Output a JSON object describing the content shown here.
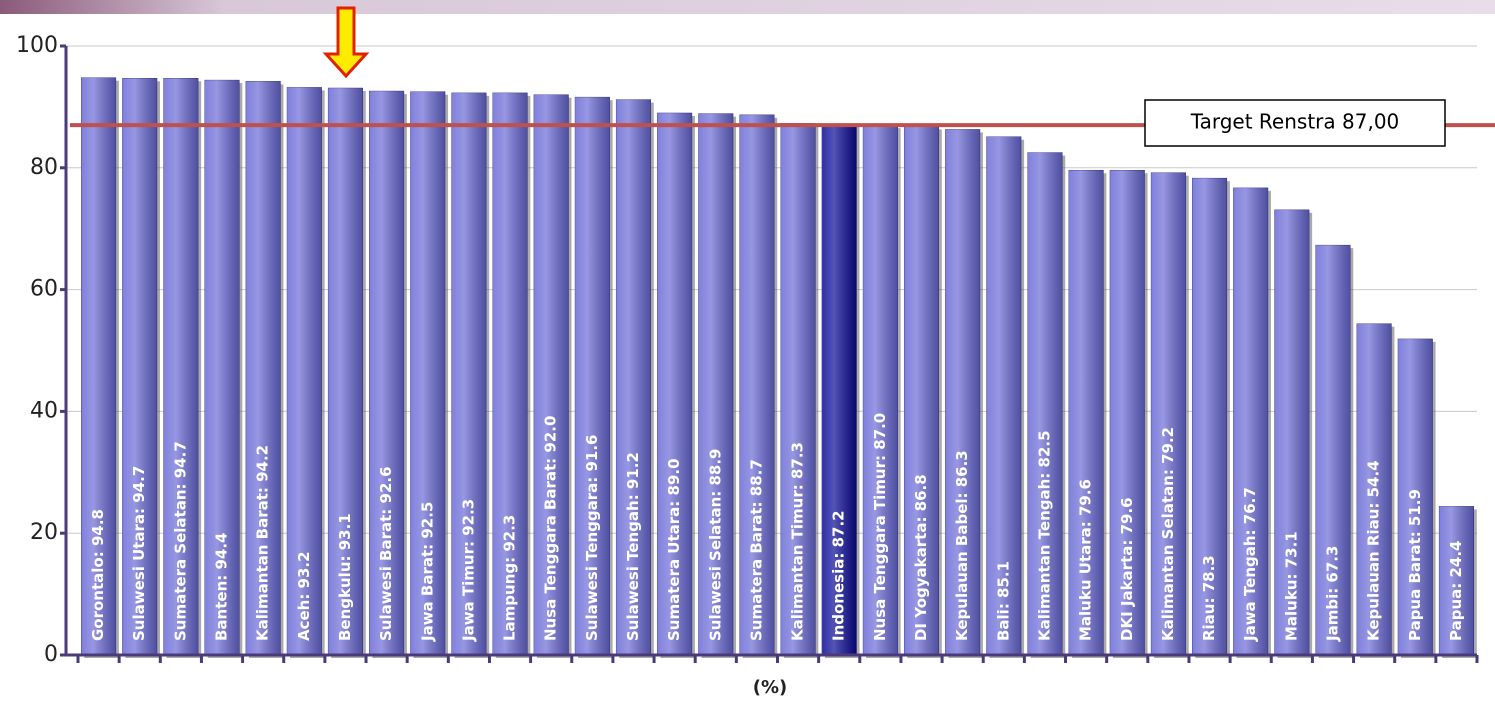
{
  "chart_data": {
    "type": "bar",
    "x_label": "(%)",
    "value_labels": [
      "Gorontalo: 94.8",
      "Sulawesi Utara: 94.7",
      "Sumatera Selatan: 94.7",
      "Banten: 94.4",
      "Kalimantan Barat: 94.2",
      "Aceh: 93.2",
      "Bengkulu: 93.1",
      "Sulawesi Barat: 92.6",
      "Jawa Barat: 92.5",
      "Jawa Timur: 92.3",
      "Lampung: 92.3",
      "Nusa Tenggara Barat: 92.0",
      "Sulawesi Tenggara: 91.6",
      "Sulawesi Tengah: 91.2",
      "Sumatera Utara: 89.0",
      "Sulawesi Selatan: 88.9",
      "Sumatera Barat: 88.7",
      "Kalimantan Timur: 87.3",
      "Indonesia: 87.2",
      "Nusa Tenggara Timur: 87.0",
      "DI Yogyakarta: 86.8",
      "Kepulauan Babel: 86.3",
      "Bali: 85.1",
      "Kalimantan Tengah: 82.5",
      "Maluku Utara: 79.6",
      "DKI Jakarta: 79.6",
      "Kalimantan Selatan: 79.2",
      "Riau: 78.3",
      "Jawa Tengah: 76.7",
      "Maluku: 73.1",
      "Jambi: 67.3",
      "Kepulauan Riau: 54.4",
      "Papua Barat: 51.9",
      "Papua: 24.4"
    ],
    "values": [
      94.8,
      94.7,
      94.7,
      94.4,
      94.2,
      93.2,
      93.1,
      92.6,
      92.5,
      92.3,
      92.3,
      92.0,
      91.6,
      91.2,
      89.0,
      88.9,
      88.7,
      87.3,
      87.2,
      87.0,
      86.8,
      86.3,
      85.1,
      82.5,
      79.6,
      79.6,
      79.2,
      78.3,
      76.7,
      73.1,
      67.3,
      54.4,
      51.9,
      24.4
    ],
    "colors": [
      "#6a6ad6",
      "#6a6ad6",
      "#6a6ad6",
      "#6a6ad6",
      "#6a6ad6",
      "#6a6ad6",
      "#6a6ad6",
      "#6a6ad6",
      "#6a6ad6",
      "#6a6ad6",
      "#6a6ad6",
      "#6a6ad6",
      "#6a6ad6",
      "#6a6ad6",
      "#6a6ad6",
      "#6a6ad6",
      "#6a6ad6",
      "#6a6ad6",
      "#0a0a96",
      "#6a6ad6",
      "#6a6ad6",
      "#6a6ad6",
      "#6a6ad6",
      "#6a6ad6",
      "#6a6ad6",
      "#6a6ad6",
      "#6a6ad6",
      "#6a6ad6",
      "#6a6ad6",
      "#6a6ad6",
      "#6a6ad6",
      "#6a6ad6",
      "#6a6ad6",
      "#6a6ad6"
    ],
    "ylim": [
      0,
      100
    ],
    "yticks": [
      0,
      20,
      40,
      60,
      80,
      100
    ],
    "grid": true,
    "target": {
      "value": 87,
      "label": "Target Renstra 87,00",
      "color": "#c0504d"
    }
  }
}
